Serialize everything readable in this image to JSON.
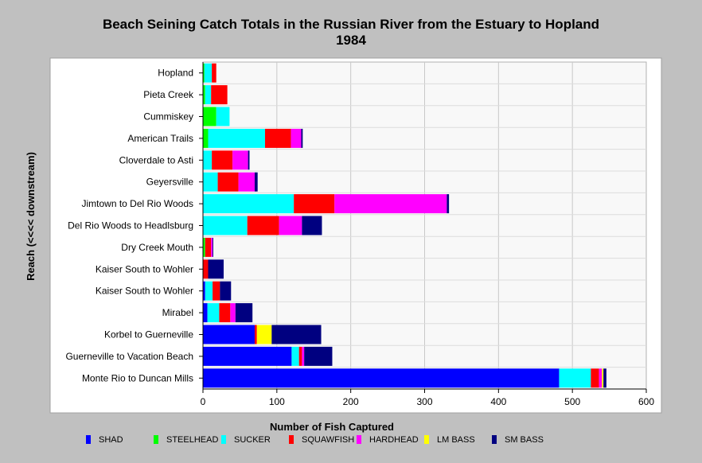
{
  "chart_data": {
    "type": "bar",
    "orientation": "horizontal",
    "stacked": true,
    "title": "Beach Seining Catch Totals in the Russian River from the Estuary to Hopland",
    "subtitle": "1984",
    "xlabel": "Number of Fish Captured",
    "ylabel": "Reach (<<<< downstream)",
    "xlim": [
      0,
      600
    ],
    "xticks": [
      "0",
      "100",
      "200",
      "300",
      "400",
      "500",
      "600"
    ],
    "grid": true,
    "legend_position": "bottom",
    "categories": [
      "Hopland",
      "Pieta Creek",
      "Cummiskey",
      "American Trails",
      "Cloverdale to Asti",
      "Geyersville",
      "Jimtown to Del Rio Woods",
      "Del Rio Woods to Headlsburg",
      "Dry Creek Mouth",
      "Kaiser South to Wohler",
      "Kaiser South to Wohler",
      "Mirabel",
      "Korbel to Guerneville",
      "Guerneville to Vacation Beach",
      "Monte Rio to Duncan Mills"
    ],
    "series": [
      {
        "name": "SHAD",
        "color": "#0000ff",
        "values": [
          0,
          0,
          0,
          0,
          0,
          0,
          0,
          0,
          0,
          0,
          3,
          6,
          70,
          120,
          482
        ]
      },
      {
        "name": "STEELHEAD",
        "color": "#00ff00",
        "values": [
          2,
          3,
          18,
          7,
          0,
          0,
          0,
          0,
          3,
          0,
          0,
          0,
          0,
          0,
          0
        ]
      },
      {
        "name": "SUCKER",
        "color": "#00ffff",
        "values": [
          10,
          8,
          18,
          77,
          12,
          20,
          123,
          60,
          0,
          0,
          10,
          16,
          0,
          10,
          43
        ]
      },
      {
        "name": "SQUAWFISH",
        "color": "#ff0000",
        "values": [
          6,
          22,
          0,
          35,
          28,
          28,
          55,
          43,
          8,
          7,
          10,
          15,
          3,
          4,
          11
        ]
      },
      {
        "name": "HARDHEAD",
        "color": "#ff00ff",
        "values": [
          0,
          0,
          0,
          14,
          21,
          22,
          152,
          31,
          2,
          0,
          0,
          7,
          0,
          3,
          4
        ]
      },
      {
        "name": "LM BASS",
        "color": "#ffff00",
        "values": [
          0,
          0,
          0,
          0,
          0,
          0,
          0,
          0,
          0,
          0,
          0,
          0,
          20,
          0,
          2
        ]
      },
      {
        "name": "SM BASS",
        "color": "#000080",
        "values": [
          0,
          0,
          0,
          2,
          2,
          4,
          3,
          27,
          1,
          21,
          15,
          23,
          67,
          38,
          4
        ]
      }
    ]
  }
}
